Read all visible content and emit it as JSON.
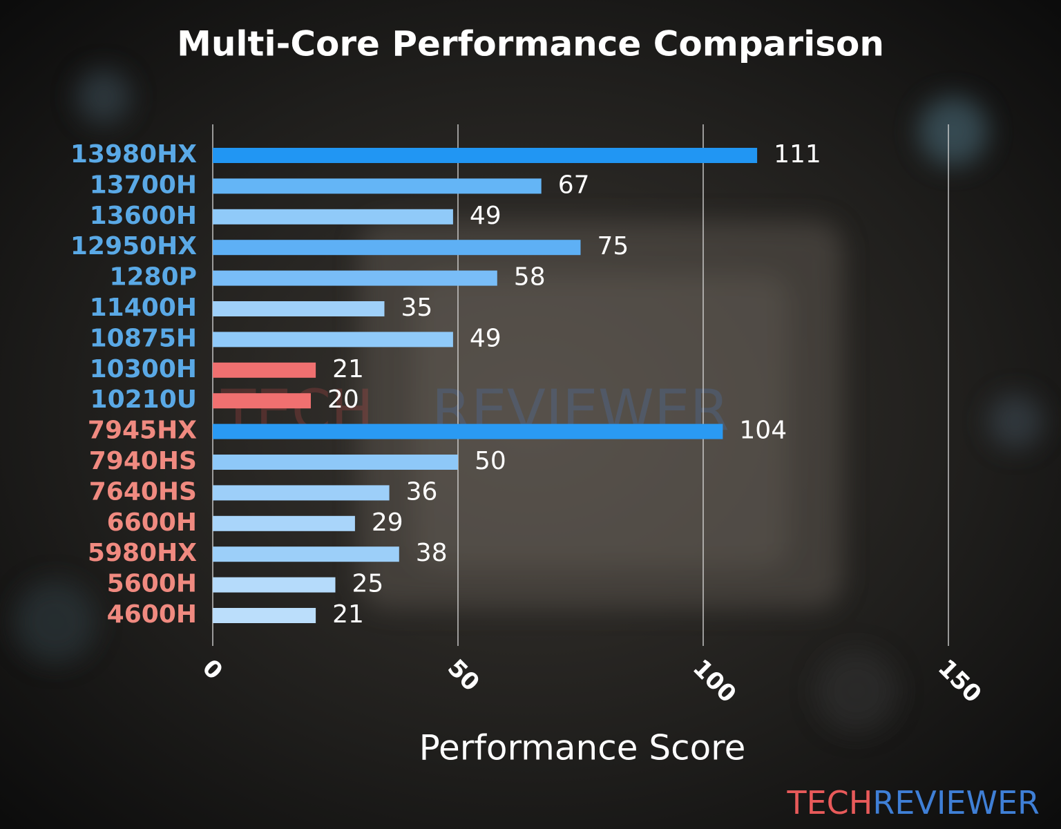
{
  "chart_data": {
    "type": "barh",
    "title": "Multi-Core Performance Comparison",
    "xlabel": "Performance Score",
    "categories": [
      "13980HX",
      "13700H",
      "13600H",
      "12950HX",
      "1280P",
      "11400H",
      "10875H",
      "10300H",
      "10210U",
      "7945HX",
      "7940HS",
      "7640HS",
      "6600H",
      "5980HX",
      "5600H",
      "4600H"
    ],
    "category_colors": [
      "#5aa9e6",
      "#5aa9e6",
      "#5aa9e6",
      "#5aa9e6",
      "#5aa9e6",
      "#5aa9e6",
      "#5aa9e6",
      "#5aa9e6",
      "#5aa9e6",
      "#f08a80",
      "#f08a80",
      "#f08a80",
      "#f08a80",
      "#f08a80",
      "#f08a80",
      "#f08a80"
    ],
    "values": [
      111,
      67,
      49,
      75,
      58,
      35,
      49,
      21,
      20,
      104,
      50,
      36,
      29,
      38,
      25,
      21
    ],
    "colors": [
      "#2196f3",
      "#64b5f6",
      "#90caf9",
      "#5eb0f5",
      "#79bdf7",
      "#9fd0f9",
      "#90caf9",
      "#f07070",
      "#f07070",
      "#2a9af3",
      "#8ec8f8",
      "#9dcff9",
      "#a9d5fa",
      "#9ccff9",
      "#b5dbfb",
      "#bbdefb"
    ],
    "xlim": [
      0,
      150
    ],
    "xticks": [
      0,
      50,
      100,
      150
    ],
    "grid": true
  },
  "branding": {
    "part1": "TECH",
    "part2": "REVIEWER"
  }
}
